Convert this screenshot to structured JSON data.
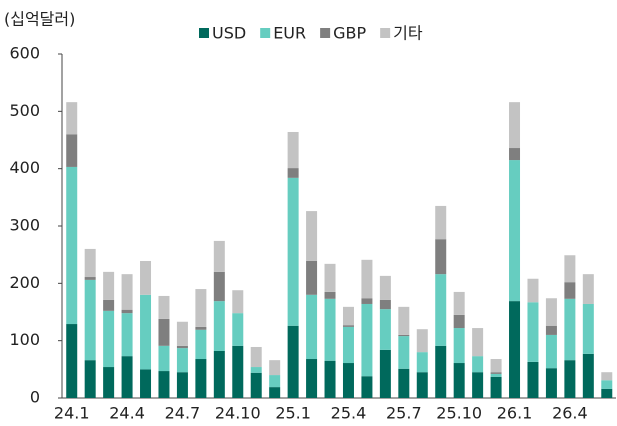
{
  "chart_data": {
    "type": "stacked_bar",
    "y_label": "(십억달러)",
    "categories": [
      "24.1",
      null,
      null,
      "24.4",
      null,
      null,
      "24.7",
      null,
      null,
      "24.10",
      null,
      null,
      "25.1",
      null,
      null,
      "25.4",
      null,
      null,
      "25.7",
      null,
      null,
      "25.10",
      null,
      null,
      "26.1",
      null,
      null,
      "26.4",
      null,
      null
    ],
    "series": [
      {
        "name": "USD",
        "color": "#00695c",
        "values": [
          129,
          66,
          54,
          73,
          50,
          47,
          45,
          68,
          82,
          91,
          44,
          19,
          126,
          68,
          65,
          61,
          38,
          84,
          51,
          45,
          91,
          61,
          45,
          37,
          169,
          63,
          52,
          66,
          77,
          16
        ]
      },
      {
        "name": "EUR",
        "color": "#66cdc0",
        "values": [
          274,
          140,
          98,
          75,
          130,
          44,
          42,
          51,
          87,
          57,
          10,
          21,
          258,
          112,
          108,
          63,
          126,
          71,
          57,
          35,
          125,
          61,
          28,
          5,
          246,
          104,
          58,
          107,
          87,
          15
        ]
      },
      {
        "name": "GBP",
        "color": "#7f7f7f",
        "values": [
          57,
          5,
          19,
          6,
          0,
          47,
          4,
          5,
          51,
          0,
          0,
          0,
          17,
          59,
          12,
          3,
          10,
          16,
          2,
          0,
          61,
          23,
          0,
          3,
          21,
          0,
          16,
          29,
          0,
          0
        ]
      },
      {
        "name": "기타",
        "color": "#c3c3c3",
        "values": [
          56,
          49,
          49,
          62,
          59,
          40,
          42,
          66,
          54,
          40,
          35,
          26,
          63,
          87,
          49,
          32,
          67,
          42,
          49,
          40,
          58,
          40,
          49,
          23,
          80,
          41,
          48,
          47,
          52,
          14
        ]
      }
    ],
    "ylim": [
      0,
      600
    ],
    "yticks": [
      0,
      100,
      200,
      300,
      400,
      500,
      600
    ],
    "grid": false
  }
}
